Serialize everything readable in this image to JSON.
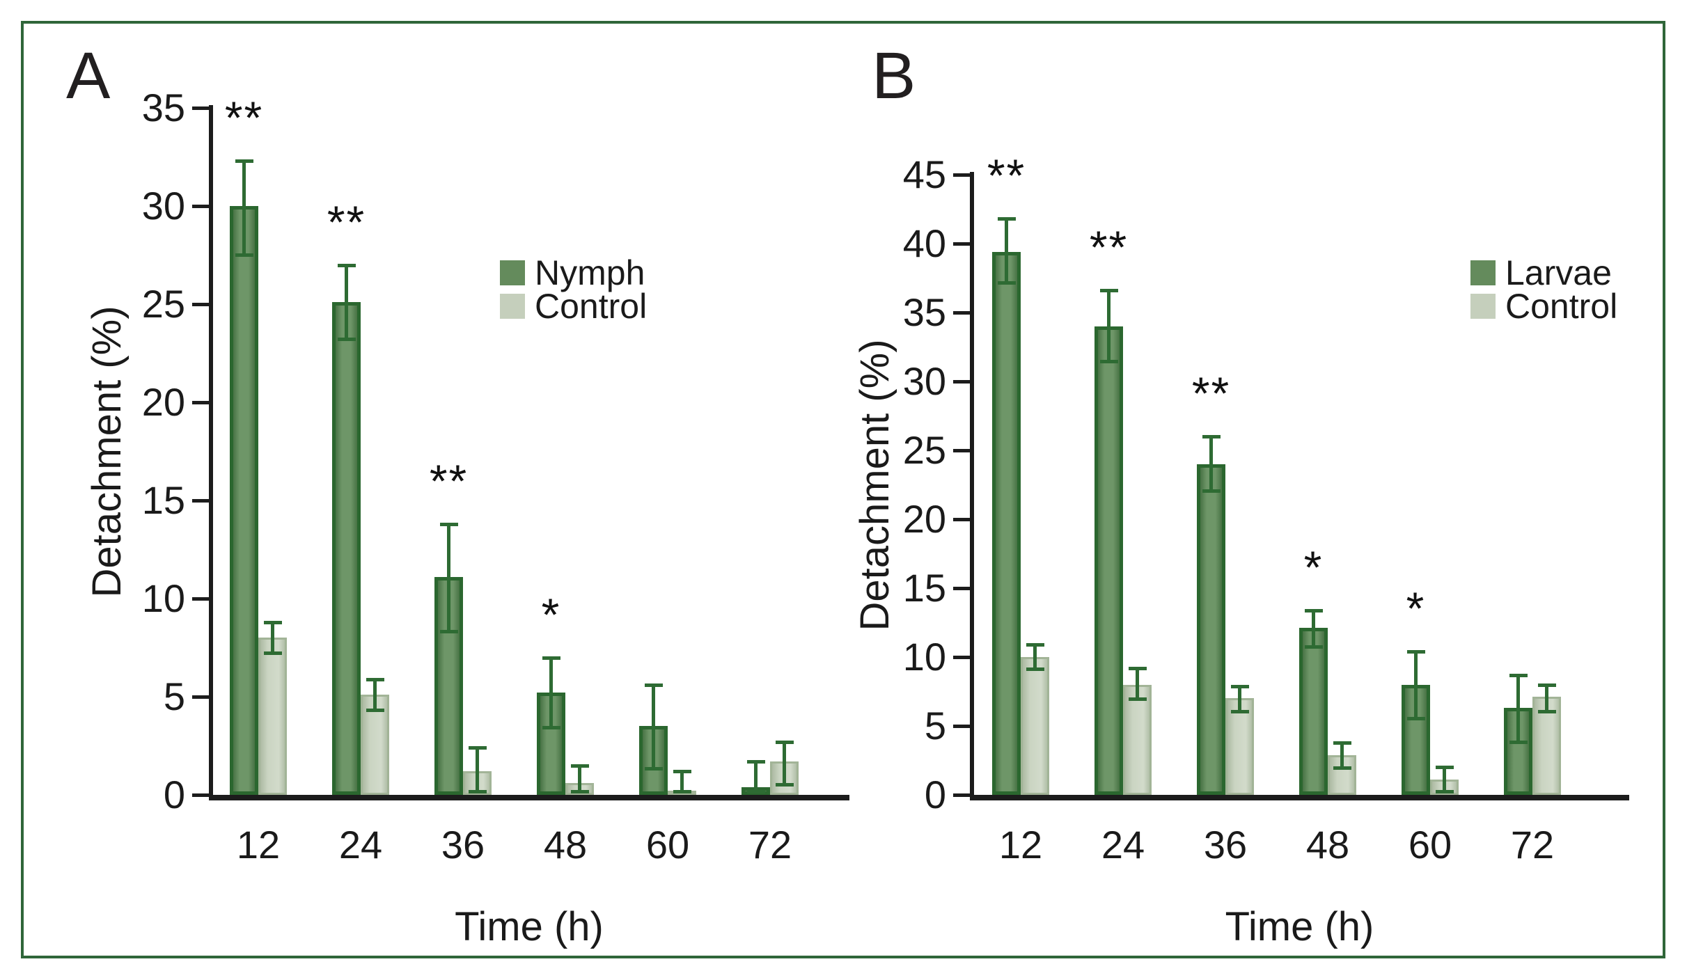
{
  "figure": {
    "background": "#ffffff",
    "border_color": "#2f6639",
    "bar_series_color": "#5e8a57",
    "bar_series_edge": "#2b672f",
    "bar_control_color": "#c1cdb7",
    "bar_control_edge": "#a2b497",
    "errorbar_color": "#2e6b33",
    "axis_color": "#1c1c1c"
  },
  "chart_data": [
    {
      "type": "bar",
      "panel_label": "A",
      "title": "",
      "xlabel": "Time (h)",
      "ylabel": "Detachment (%)",
      "ylim": [
        0,
        35
      ],
      "ytick_step": 5,
      "yticks": [
        "0",
        "5",
        "10",
        "15",
        "20",
        "25",
        "30",
        "35"
      ],
      "categories": [
        "12",
        "24",
        "36",
        "48",
        "60",
        "72"
      ],
      "grid": "off",
      "legend_position": "upper right inside",
      "error_bars": true,
      "series": [
        {
          "name": "Nymph",
          "swatch_color": "#648b5c",
          "values": [
            30.0,
            25.1,
            11.1,
            5.2,
            3.5,
            0.4
          ],
          "err_up": [
            2.3,
            1.9,
            2.7,
            1.8,
            2.1,
            1.3
          ],
          "err_dn": [
            2.5,
            1.9,
            2.8,
            1.8,
            2.2,
            0.3
          ]
        },
        {
          "name": "Control",
          "swatch_color": "#c5cfbc",
          "values": [
            8.0,
            5.1,
            1.2,
            0.6,
            0.2,
            1.7
          ],
          "err_up": [
            0.8,
            0.8,
            1.2,
            0.9,
            1.0,
            1.0
          ],
          "err_dn": [
            0.8,
            0.8,
            1.1,
            0.6,
            0.2,
            1.2
          ]
        }
      ],
      "significance": [
        "**",
        "**",
        "**",
        "*",
        "",
        ""
      ]
    },
    {
      "type": "bar",
      "panel_label": "B",
      "title": "",
      "xlabel": "Time (h)",
      "ylabel": "Detachment (%)",
      "ylim": [
        0,
        45
      ],
      "ytick_step": 5,
      "yticks": [
        "0",
        "5",
        "10",
        "15",
        "20",
        "25",
        "30",
        "35",
        "40",
        "45"
      ],
      "categories": [
        "12",
        "24",
        "36",
        "48",
        "60",
        "72"
      ],
      "grid": "off",
      "legend_position": "upper right inside",
      "error_bars": true,
      "series": [
        {
          "name": "Larvae",
          "swatch_color": "#648b5c",
          "values": [
            39.4,
            34.0,
            24.0,
            12.1,
            8.0,
            6.3
          ],
          "err_up": [
            2.4,
            2.6,
            2.0,
            1.3,
            2.4,
            2.4
          ],
          "err_dn": [
            2.3,
            2.6,
            2.0,
            1.4,
            2.5,
            2.5
          ]
        },
        {
          "name": "Control",
          "swatch_color": "#c5cfbc",
          "values": [
            10.0,
            8.0,
            7.0,
            2.9,
            1.1,
            7.1
          ],
          "err_up": [
            0.9,
            1.2,
            0.9,
            0.9,
            0.9,
            0.9
          ],
          "err_dn": [
            0.9,
            1.1,
            1.0,
            1.0,
            1.0,
            1.1
          ]
        }
      ],
      "significance": [
        "**",
        "**",
        "**",
        "*",
        "*",
        ""
      ]
    }
  ]
}
